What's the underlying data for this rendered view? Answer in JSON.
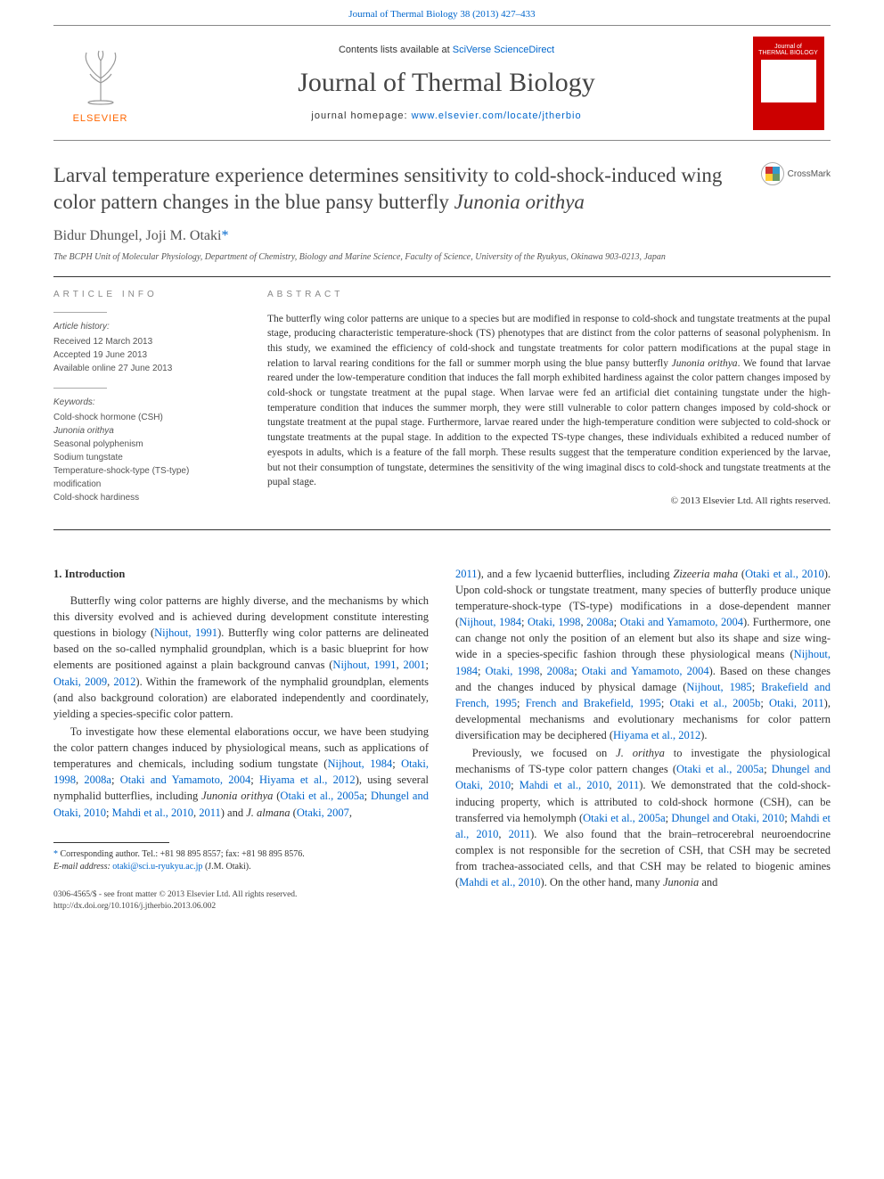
{
  "topLink": {
    "journal": "Journal of Thermal Biology",
    "cite": "38 (2013) 427–433"
  },
  "header": {
    "contentsPrefix": "Contents lists available at ",
    "contentsLink": "SciVerse ScienceDirect",
    "journalName": "Journal of Thermal Biology",
    "homepagePrefix": "journal homepage: ",
    "homepageUrl": "www.elsevier.com/locate/jtherbio",
    "elsevier": "ELSEVIER",
    "coverLine1": "Journal of",
    "coverLine2": "THERMAL BIOLOGY"
  },
  "article": {
    "titleHtml": "Larval temperature experience determines sensitivity to cold-shock-induced wing color pattern changes in the blue pansy butterfly <em>Junonia orithya</em>",
    "crossmark": "CrossMark",
    "authorsHtml": "Bidur Dhungel, Joji M. Otaki<span class=\"asterisk\">*</span>",
    "affiliation": "The BCPH Unit of Molecular Physiology, Department of Chemistry, Biology and Marine Science, Faculty of Science, University of the Ryukyus, Okinawa 903-0213, Japan"
  },
  "info": {
    "header": "ARTICLE INFO",
    "historyLabel": "Article history:",
    "received": "Received 12 March 2013",
    "accepted": "Accepted 19 June 2013",
    "online": "Available online 27 June 2013",
    "keywordsLabel": "Keywords:",
    "keywords": [
      "Cold-shock hormone (CSH)",
      "Junonia orithya",
      "Seasonal polyphenism",
      "Sodium tungstate",
      "Temperature-shock-type (TS-type) modification",
      "Cold-shock hardiness"
    ]
  },
  "abstract": {
    "header": "ABSTRACT",
    "textHtml": "The butterfly wing color patterns are unique to a species but are modified in response to cold-shock and tungstate treatments at the pupal stage, producing characteristic temperature-shock (TS) phenotypes that are distinct from the color patterns of seasonal polyphenism. In this study, we examined the efficiency of cold-shock and tungstate treatments for color pattern modifications at the pupal stage in relation to larval rearing conditions for the fall or summer morph using the blue pansy butterfly <em>Junonia orithya</em>. We found that larvae reared under the low-temperature condition that induces the fall morph exhibited hardiness against the color pattern changes imposed by cold-shock or tungstate treatment at the pupal stage. When larvae were fed an artificial diet containing tungstate under the high-temperature condition that induces the summer morph, they were still vulnerable to color pattern changes imposed by cold-shock or tungstate treatment at the pupal stage. Furthermore, larvae reared under the high-temperature condition were subjected to cold-shock or tungstate treatments at the pupal stage. In addition to the expected TS-type changes, these individuals exhibited a reduced number of eyespots in adults, which is a feature of the fall morph. These results suggest that the temperature condition experienced by the larvae, but not their consumption of tungstate, determines the sensitivity of the wing imaginal discs to cold-shock and tungstate treatments at the pupal stage.",
    "copyright": "© 2013 Elsevier Ltd. All rights reserved."
  },
  "body": {
    "sectionHeader": "1.  Introduction",
    "col1": [
      "Butterfly wing color patterns are highly diverse, and the mechanisms by which this diversity evolved and is achieved during development constitute interesting questions in biology (<span class=\"ref\">Nijhout, 1991</span>). Butterfly wing color patterns are delineated based on the so-called nymphalid groundplan, which is a basic blueprint for how elements are positioned against a plain background canvas (<span class=\"ref\">Nijhout, 1991</span>, <span class=\"ref\">2001</span>; <span class=\"ref\">Otaki, 2009</span>, <span class=\"ref\">2012</span>). Within the framework of the nymphalid groundplan, elements (and also background coloration) are elaborated independently and coordinately, yielding a species-specific color pattern.",
      "To investigate how these elemental elaborations occur, we have been studying the color pattern changes induced by physiological means, such as applications of temperatures and chemicals, including sodium tungstate (<span class=\"ref\">Nijhout, 1984</span>; <span class=\"ref\">Otaki, 1998</span>, <span class=\"ref\">2008a</span>; <span class=\"ref\">Otaki and Yamamoto, 2004</span>; <span class=\"ref\">Hiyama et al., 2012</span>), using several nymphalid butterflies, including <em>Junonia orithya</em> (<span class=\"ref\">Otaki et al., 2005a</span>; <span class=\"ref\">Dhungel and Otaki, 2010</span>; <span class=\"ref\">Mahdi et al., 2010</span>, <span class=\"ref\">2011</span>) and <em>J. almana</em> (<span class=\"ref\">Otaki, 2007</span>,"
    ],
    "col2": [
      "<span class=\"ref\">2011</span>), and a few lycaenid butterflies, including <em>Zizeeria maha</em> (<span class=\"ref\">Otaki et al., 2010</span>). Upon cold-shock or tungstate treatment, many species of butterfly produce unique temperature-shock-type (TS-type) modifications in a dose-dependent manner (<span class=\"ref\">Nijhout, 1984</span>; <span class=\"ref\">Otaki, 1998</span>, <span class=\"ref\">2008a</span>; <span class=\"ref\">Otaki and Yamamoto, 2004</span>). Furthermore, one can change not only the position of an element but also its shape and size wing-wide in a species-specific fashion through these physiological means (<span class=\"ref\">Nijhout, 1984</span>; <span class=\"ref\">Otaki, 1998</span>, <span class=\"ref\">2008a</span>; <span class=\"ref\">Otaki and Yamamoto, 2004</span>). Based on these changes and the changes induced by physical damage (<span class=\"ref\">Nijhout, 1985</span>; <span class=\"ref\">Brakefield and French, 1995</span>; <span class=\"ref\">French and Brakefield, 1995</span>; <span class=\"ref\">Otaki et al., 2005b</span>; <span class=\"ref\">Otaki, 2011</span>), developmental mechanisms and evolutionary mechanisms for color pattern diversification may be deciphered (<span class=\"ref\">Hiyama et al., 2012</span>).",
      "Previously, we focused on <em>J. orithya</em> to investigate the physiological mechanisms of TS-type color pattern changes (<span class=\"ref\">Otaki et al., 2005a</span>; <span class=\"ref\">Dhungel and Otaki, 2010</span>; <span class=\"ref\">Mahdi et al., 2010</span>, <span class=\"ref\">2011</span>). We demonstrated that the cold-shock-inducing property, which is attributed to cold-shock hormone (CSH), can be transferred via hemolymph (<span class=\"ref\">Otaki et al., 2005a</span>; <span class=\"ref\">Dhungel and Otaki, 2010</span>; <span class=\"ref\">Mahdi et al., 2010</span>, <span class=\"ref\">2011</span>). We also found that the brain–retrocerebral neuroendocrine complex is not responsible for the secretion of CSH, that CSH may be secreted from trachea-associated cells, and that CSH may be related to biogenic amines (<span class=\"ref\">Mahdi et al., 2010</span>). On the other hand, many <em>Junonia</em> and"
    ]
  },
  "footnote": {
    "corr": "Corresponding author. Tel.: +81 98 895 8557; fax: +81 98 895 8576.",
    "emailLabel": "E-mail address: ",
    "email": "otaki@sci.u-ryukyu.ac.jp",
    "emailSuffix": " (J.M. Otaki)."
  },
  "bottom": {
    "line1": "0306-4565/$ - see front matter © 2013 Elsevier Ltd. All rights reserved.",
    "line2": "http://dx.doi.org/10.1016/j.jtherbio.2013.06.002"
  }
}
